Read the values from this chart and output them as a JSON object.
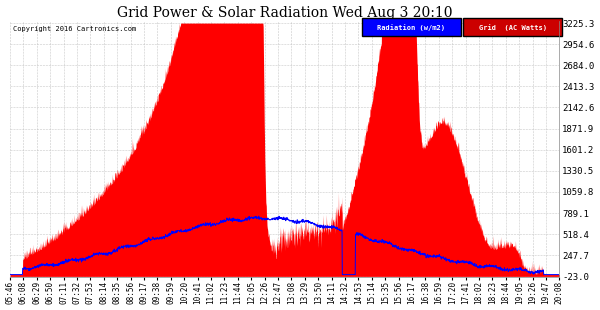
{
  "title": "Grid Power & Solar Radiation Wed Aug 3 20:10",
  "copyright": "Copyright 2016 Cartronics.com",
  "legend_labels": [
    "Radiation (w/m2)",
    "Grid  (AC Watts)"
  ],
  "legend_colors": [
    "#0000ff",
    "#cc0000"
  ],
  "ymin": -23.0,
  "ymax": 3225.3,
  "yticks": [
    -23.0,
    247.7,
    518.4,
    789.1,
    1059.8,
    1330.5,
    1601.2,
    1871.9,
    2142.6,
    2413.3,
    2684.0,
    2954.6,
    3225.3
  ],
  "background_color": "#ffffff",
  "plot_bg_color": "#ffffff",
  "grid_color": "#bbbbbb",
  "xtick_labels": [
    "05:46",
    "06:08",
    "06:29",
    "06:50",
    "07:11",
    "07:32",
    "07:53",
    "08:14",
    "08:35",
    "08:56",
    "09:17",
    "09:38",
    "09:59",
    "10:20",
    "10:41",
    "11:02",
    "11:23",
    "11:44",
    "12:05",
    "12:26",
    "12:47",
    "13:08",
    "13:29",
    "13:50",
    "14:11",
    "14:32",
    "14:53",
    "15:14",
    "15:35",
    "15:56",
    "16:17",
    "16:38",
    "16:59",
    "17:20",
    "17:41",
    "18:02",
    "18:23",
    "18:44",
    "19:05",
    "19:26",
    "19:47",
    "20:08"
  ],
  "n_points": 2000,
  "total_minutes": 870
}
